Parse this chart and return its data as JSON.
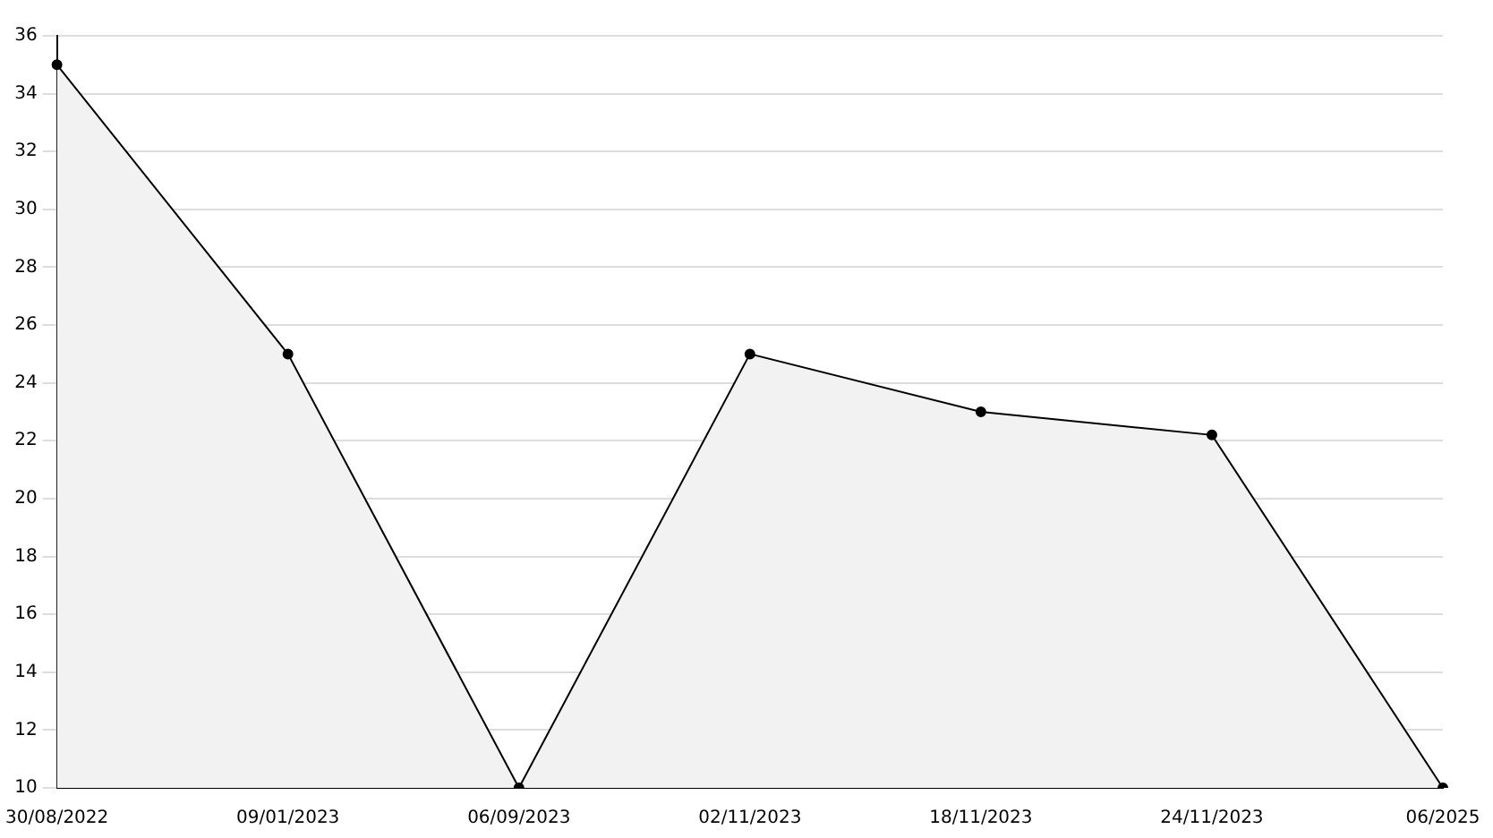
{
  "chart_data": {
    "type": "area",
    "categories": [
      "30/08/2022",
      "09/01/2023",
      "06/09/2023",
      "02/11/2023",
      "18/11/2023",
      "24/11/2023",
      "06/2025"
    ],
    "series": [
      {
        "color": "#000000",
        "values": [
          35,
          25,
          10,
          25,
          23,
          22.2,
          10
        ]
      }
    ],
    "ylim": [
      10,
      36
    ],
    "yticks": [
      10,
      12,
      14,
      16,
      18,
      20,
      22,
      24,
      26,
      28,
      30,
      32,
      34,
      36
    ],
    "grid": "y",
    "marker": "circle",
    "legend": false
  }
}
